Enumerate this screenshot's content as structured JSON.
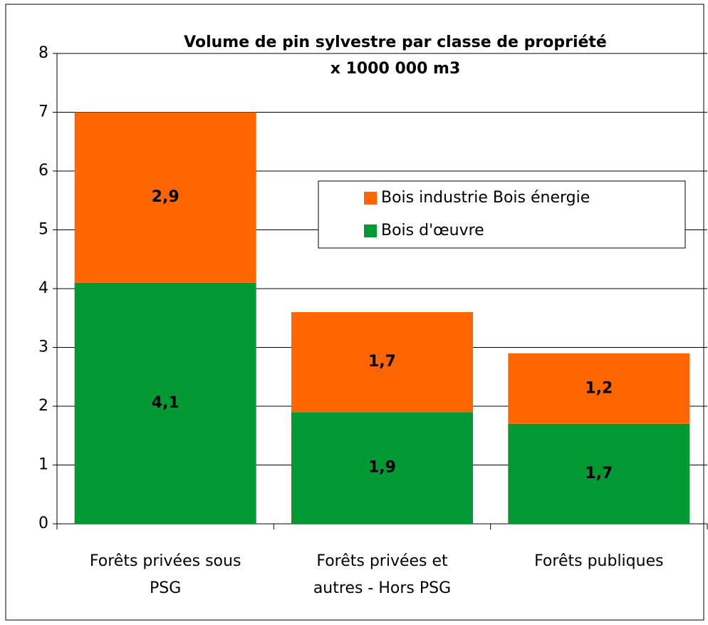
{
  "chart_data": {
    "type": "stacked_bar",
    "title": "Volume de pin sylvestre par classe de propriété",
    "subtitle": "x 1000 000 m3",
    "categories": [
      [
        "Forêts privées sous",
        "PSG"
      ],
      [
        "Forêts privées et",
        "autres - Hors PSG"
      ],
      [
        "Forêts publiques"
      ]
    ],
    "series": [
      {
        "name": "Bois d'œuvre",
        "color": "#009933",
        "values": [
          4.1,
          1.9,
          1.7
        ],
        "value_labels": [
          "4,1",
          "1,9",
          "1,7"
        ]
      },
      {
        "name": "Bois industrie Bois énergie",
        "color": "#ff6600",
        "values": [
          2.9,
          1.7,
          1.2
        ],
        "value_labels": [
          "2,9",
          "1,7",
          "1,2"
        ]
      }
    ],
    "ylim": [
      0,
      8
    ],
    "yticks": [
      0,
      1,
      2,
      3,
      4,
      5,
      6,
      7,
      8
    ],
    "grid": true
  }
}
